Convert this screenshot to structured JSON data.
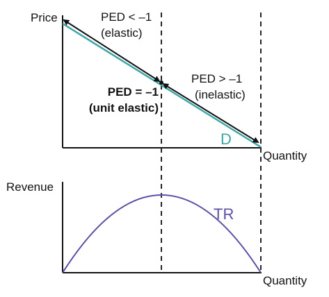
{
  "top_chart": {
    "y_axis_label": "Price",
    "x_axis_label": "Quantity",
    "demand_label": "D",
    "elastic": {
      "line1": "PED < –1",
      "line2": "(elastic)"
    },
    "unit_elastic": {
      "line1": "PED = –1",
      "line2": "(unit elastic)"
    },
    "inelastic": {
      "line1": "PED > –1",
      "line2": "(inelastic)"
    }
  },
  "bottom_chart": {
    "y_axis_label": "Revenue",
    "x_axis_label": "Quantity",
    "curve_label": "TR"
  },
  "colors": {
    "demand_line": "#3aa6a6",
    "tr_curve": "#5a4ea6",
    "axes": "#111111",
    "arrows": "#111111",
    "dashed": "#222222"
  }
}
